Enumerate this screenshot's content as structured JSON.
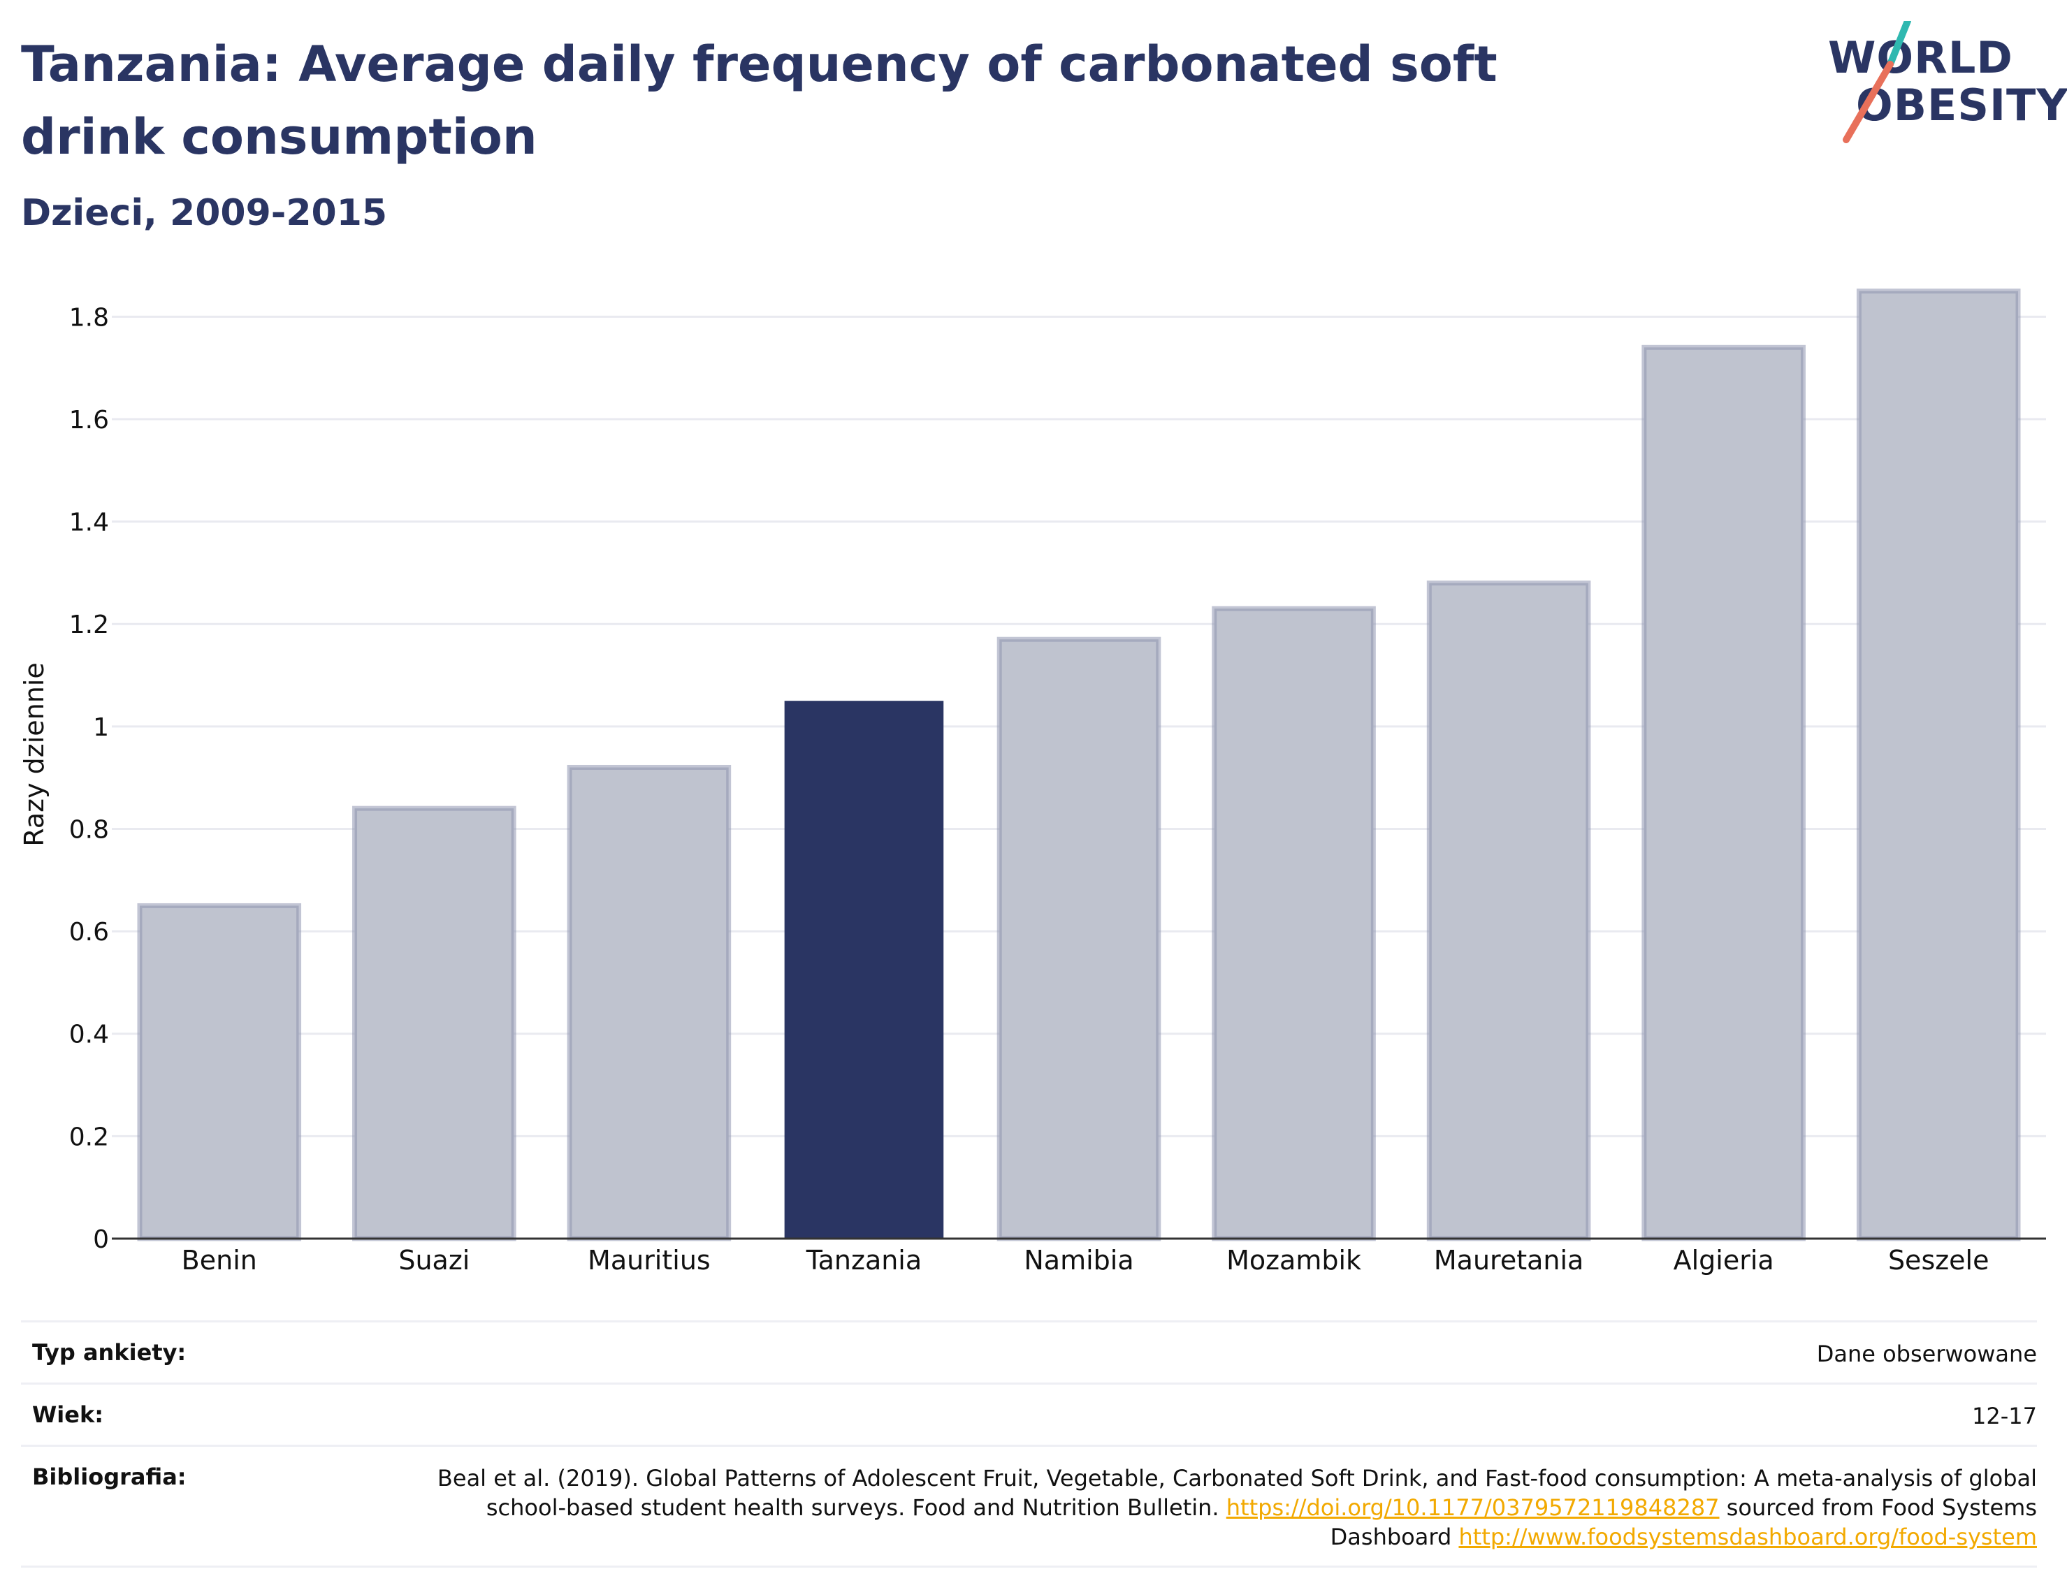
{
  "header": {
    "title": "Tanzania: Average daily frequency of carbonated soft drink consumption",
    "subtitle": "Dzieci, 2009-2015"
  },
  "logo": {
    "line1": "WORLD",
    "line2": "OBESITY"
  },
  "colors": {
    "highlight": "#2a3563",
    "bar_fill": "#bfc3cf",
    "bar_stroke": "#8f96b0",
    "logo_teal": "#2fb8b0",
    "logo_coral": "#e8705a",
    "link": "#f2a900"
  },
  "chart_data": {
    "type": "bar",
    "categories": [
      "Benin",
      "Suazi",
      "Mauritius",
      "Tanzania",
      "Namibia",
      "Mozambik",
      "Mauretania",
      "Algieria",
      "Seszele"
    ],
    "values": [
      0.65,
      0.84,
      0.92,
      1.05,
      1.17,
      1.23,
      1.28,
      1.74,
      1.85
    ],
    "highlight": "Tanzania",
    "ylabel": "Razy dziennie",
    "ylim": [
      0,
      1.9
    ],
    "yticks": [
      0,
      0.2,
      0.4,
      0.6,
      0.8,
      1,
      1.2,
      1.4,
      1.6,
      1.8
    ],
    "ytick_labels": [
      "0",
      "0.2",
      "0.4",
      "0.6",
      "0.8",
      "1",
      "1.2",
      "1.4",
      "1.6",
      "1.8"
    ],
    "grid": true
  },
  "meta": {
    "survey_label": "Typ ankiety:",
    "survey_value": "Dane obserwowane",
    "age_label": "Wiek:",
    "age_value": "12-17",
    "biblio_label": "Bibliografia:",
    "biblio_text1": "Beal et al. (2019). Global Patterns of Adolescent Fruit, Vegetable, Carbonated Soft Drink, and Fast-food consumption: A meta-analysis of global school-based student health surveys. Food and Nutrition Bulletin. ",
    "biblio_link1": "https://doi.org/10.1177/0379572119848287",
    "biblio_text2": " sourced from Food Systems Dashboard ",
    "biblio_link2": "http://www.foodsystemsdashboard.org/food-system"
  }
}
